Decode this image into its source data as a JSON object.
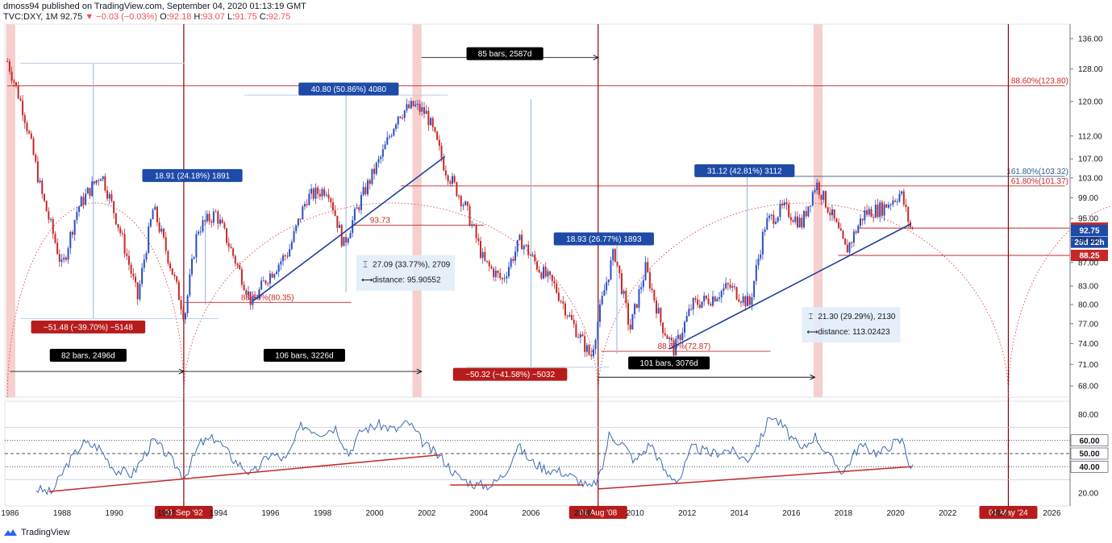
{
  "header": {
    "publisher": "dmoss94 published on TradingView.com, September 04, 2020 01:13:19 GMT",
    "symbol": "TVC:DXY, 1M",
    "last": "92.75",
    "change": "−0.03 (−0.03%)",
    "ohlc": {
      "o": "92.18",
      "h": "93.07",
      "l": "91.75",
      "c": "92.75"
    }
  },
  "footer": {
    "brand": "TradingView"
  },
  "colors": {
    "up": "#2a4fc7",
    "down": "#c62828",
    "fib": "#c62828",
    "trend": "#1e3fa0",
    "shade": "#f4c7c7",
    "rsi": "#3d6bb3"
  },
  "chart_data": {
    "type": "candlestick",
    "interval": "1M",
    "x_range": [
      1985.8,
      2026.7
    ],
    "ylim": [
      66.5,
      140
    ],
    "y_scale": "log",
    "y_ticks": [
      136,
      128,
      120,
      112,
      107,
      103,
      99,
      95,
      91,
      87,
      83,
      80,
      77,
      74,
      71,
      68
    ],
    "x_ticks": [
      "1986",
      "1988",
      "1990",
      "1992",
      "1994",
      "1996",
      "1998",
      "2000",
      "2002",
      "2004",
      "2006",
      "2008",
      "2010",
      "2012",
      "2014",
      "2016",
      "2018",
      "2020",
      "2022",
      "2024",
      "2026"
    ],
    "price_path": [
      [
        1985.9,
        130
      ],
      [
        1986.5,
        118
      ],
      [
        1987.2,
        100
      ],
      [
        1988.0,
        86
      ],
      [
        1988.6,
        97
      ],
      [
        1989.5,
        104
      ],
      [
        1990.2,
        93
      ],
      [
        1990.9,
        81
      ],
      [
        1991.5,
        97
      ],
      [
        1992.0,
        89
      ],
      [
        1992.7,
        78
      ],
      [
        1993.2,
        93
      ],
      [
        1993.9,
        96
      ],
      [
        1994.5,
        89
      ],
      [
        1995.3,
        80
      ],
      [
        1995.8,
        84
      ],
      [
        1996.7,
        89
      ],
      [
        1997.4,
        99
      ],
      [
        1998.2,
        101
      ],
      [
        1998.8,
        90
      ],
      [
        1999.5,
        99
      ],
      [
        2000.3,
        108
      ],
      [
        2000.9,
        117
      ],
      [
        2001.5,
        119
      ],
      [
        2002.0,
        117
      ],
      [
        2002.7,
        105
      ],
      [
        2003.5,
        97
      ],
      [
        2004.2,
        87
      ],
      [
        2004.9,
        84
      ],
      [
        2005.6,
        91
      ],
      [
        2006.3,
        86
      ],
      [
        2006.9,
        83
      ],
      [
        2007.6,
        77
      ],
      [
        2008.3,
        72
      ],
      [
        2008.8,
        82
      ],
      [
        2009.2,
        89
      ],
      [
        2009.8,
        76
      ],
      [
        2010.4,
        86
      ],
      [
        2011.0,
        77
      ],
      [
        2011.5,
        73
      ],
      [
        2012.2,
        80
      ],
      [
        2012.9,
        81
      ],
      [
        2013.6,
        83
      ],
      [
        2014.4,
        80
      ],
      [
        2015.0,
        94
      ],
      [
        2015.7,
        97
      ],
      [
        2016.4,
        94
      ],
      [
        2016.95,
        102
      ],
      [
        2017.6,
        95
      ],
      [
        2018.1,
        89
      ],
      [
        2018.8,
        96
      ],
      [
        2019.5,
        97
      ],
      [
        2020.2,
        100
      ],
      [
        2020.55,
        93.5
      ],
      [
        2020.68,
        92.75
      ]
    ],
    "price_labels": [
      {
        "label": "93.19",
        "value": 93.19,
        "color": "#c62828"
      },
      {
        "label": "92.75",
        "value": 92.75,
        "color": "#1e4aa8"
      },
      {
        "label": "26d 22h",
        "value": 90.6,
        "color": "#1e4aa8"
      },
      {
        "label": "88.25",
        "value": 88.25,
        "color": "#c62828"
      }
    ],
    "annotations": {
      "measures": [
        {
          "text": "−51.48 (−39.70%) −5148",
          "style": "red",
          "x": 1989.0,
          "y": 76.5
        },
        {
          "text": "18.91 (24.18%) 1891",
          "style": "blue",
          "x": 1993.0,
          "y": 103.5
        },
        {
          "text": "40.80 (50.86%) 4080",
          "style": "blue",
          "x": 1999.0,
          "y": 123.0
        },
        {
          "text": "−50.32 (−41.58%) −5032",
          "style": "red",
          "x": 2005.2,
          "y": 69.6
        },
        {
          "text": "18.93 (26.77%) 1893",
          "style": "blue",
          "x": 2008.8,
          "y": 91.2
        },
        {
          "text": "31.12 (42.81%) 3112",
          "style": "blue",
          "x": 2014.2,
          "y": 104.5
        }
      ],
      "bar_counts": [
        {
          "text": "82 bars, 2496d",
          "x": 1989.0,
          "y": 72.3
        },
        {
          "text": "106 bars, 3226d",
          "x": 1997.3,
          "y": 72.3
        },
        {
          "text": "85 bars, 2587d",
          "x": 2005.0,
          "y": 132.0
        },
        {
          "text": "101 bars, 3076d",
          "x": 2011.3,
          "y": 71.2
        }
      ],
      "info_boxes": [
        {
          "line1": "27.09 (33.77%), 2709",
          "line2": "distance: 95.90552",
          "x": 1999.3,
          "y": 88.3
        },
        {
          "line1": "21.30 (29.29%), 2130",
          "line2": "distance: 113.02423",
          "x": 2016.4,
          "y": 79.6
        }
      ],
      "fib_labels": [
        {
          "text": "88.60%(123.80)",
          "value": 123.8
        },
        {
          "text": "161.80%(103.32)",
          "value": 103.32
        },
        {
          "text": "61.80%(101.37)",
          "value": 101.37
        },
        {
          "text": "88.60%(80.35)",
          "value": 80.35
        },
        {
          "text": "88.60%(72.87)",
          "value": 72.87
        },
        {
          "text": "93.73",
          "value": 93.73
        }
      ],
      "vertical_lines": [
        {
          "x": 1992.67,
          "label": "01 Sep '92"
        },
        {
          "x": 2008.58,
          "label": "01 Aug '08"
        },
        {
          "x": 2024.33,
          "label": "01 May '24"
        }
      ],
      "shaded_bands": [
        [
          1985.85,
          1986.2
        ],
        [
          2001.45,
          2001.8
        ],
        [
          2016.85,
          2017.2
        ]
      ]
    },
    "rsi": {
      "ylim": [
        10,
        90
      ],
      "y_ticks": [
        80,
        60,
        50,
        40,
        20
      ],
      "levels": [
        60,
        50,
        40
      ],
      "level_labels": [
        "60.00",
        "50.00",
        "40.00"
      ],
      "path": [
        [
          1987.0,
          23
        ],
        [
          1987.6,
          20
        ],
        [
          1988.2,
          42
        ],
        [
          1988.8,
          58
        ],
        [
          1989.4,
          55
        ],
        [
          1990.0,
          38
        ],
        [
          1990.7,
          34
        ],
        [
          1991.5,
          60
        ],
        [
          1992.0,
          50
        ],
        [
          1992.7,
          32
        ],
        [
          1993.3,
          58
        ],
        [
          1993.9,
          62
        ],
        [
          1994.6,
          45
        ],
        [
          1995.3,
          34
        ],
        [
          1996.0,
          50
        ],
        [
          1996.6,
          45
        ],
        [
          1997.2,
          72
        ],
        [
          1997.9,
          66
        ],
        [
          1998.5,
          70
        ],
        [
          1999.0,
          50
        ],
        [
          1999.5,
          68
        ],
        [
          2000.2,
          72
        ],
        [
          2000.8,
          68
        ],
        [
          2001.3,
          74
        ],
        [
          2001.9,
          57
        ],
        [
          2002.6,
          46
        ],
        [
          2003.2,
          32
        ],
        [
          2003.9,
          26
        ],
        [
          2004.5,
          26
        ],
        [
          2005.0,
          35
        ],
        [
          2005.5,
          56
        ],
        [
          2006.0,
          44
        ],
        [
          2006.6,
          38
        ],
        [
          2007.2,
          36
        ],
        [
          2007.8,
          30
        ],
        [
          2008.3,
          23
        ],
        [
          2008.7,
          35
        ],
        [
          2009.0,
          64
        ],
        [
          2009.5,
          58
        ],
        [
          2010.0,
          44
        ],
        [
          2010.6,
          58
        ],
        [
          2011.2,
          34
        ],
        [
          2011.7,
          30
        ],
        [
          2012.2,
          55
        ],
        [
          2012.9,
          50
        ],
        [
          2013.6,
          53
        ],
        [
          2014.3,
          45
        ],
        [
          2014.8,
          60
        ],
        [
          2015.2,
          80
        ],
        [
          2015.7,
          70
        ],
        [
          2016.4,
          52
        ],
        [
          2016.9,
          64
        ],
        [
          2017.5,
          46
        ],
        [
          2018.0,
          36
        ],
        [
          2018.6,
          56
        ],
        [
          2019.4,
          50
        ],
        [
          2019.9,
          58
        ],
        [
          2020.3,
          60
        ],
        [
          2020.55,
          40
        ],
        [
          2020.68,
          39
        ]
      ],
      "trendlines": [
        [
          [
            1987.5,
            21
          ],
          [
            2002.5,
            49
          ]
        ],
        [
          [
            2002.9,
            26
          ],
          [
            2008.0,
            26
          ]
        ],
        [
          [
            2008.6,
            23
          ],
          [
            2020.6,
            40
          ]
        ]
      ]
    }
  }
}
